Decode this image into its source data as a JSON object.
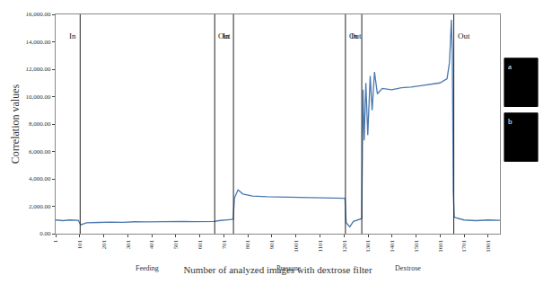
{
  "chart_data": {
    "type": "line",
    "x_label": "Number of analyzed images with dextrose filter",
    "y_label": "Correlation values",
    "x": [
      1,
      30,
      60,
      95,
      105,
      130,
      180,
      230,
      280,
      330,
      380,
      430,
      480,
      530,
      580,
      630,
      660,
      680,
      720,
      740,
      745,
      760,
      780,
      820,
      880,
      940,
      1000,
      1060,
      1120,
      1180,
      1205,
      1210,
      1225,
      1240,
      1260,
      1275,
      1280,
      1285,
      1292,
      1300,
      1310,
      1318,
      1328,
      1340,
      1360,
      1400,
      1440,
      1480,
      1520,
      1560,
      1600,
      1630,
      1640,
      1648,
      1652,
      1656,
      1660,
      1700,
      1750,
      1800,
      1850
    ],
    "series": [
      {
        "name": "Correlation values",
        "color": "#4a78b0",
        "values": [
          1000,
          950,
          1000,
          980,
          650,
          800,
          820,
          850,
          830,
          870,
          860,
          880,
          870,
          890,
          880,
          900,
          890,
          950,
          1000,
          1050,
          2600,
          3200,
          2900,
          2750,
          2700,
          2680,
          2650,
          2640,
          2620,
          2600,
          2580,
          800,
          500,
          900,
          1000,
          1100,
          10500,
          6800,
          11000,
          7200,
          11500,
          9000,
          11800,
          10200,
          10600,
          10500,
          10650,
          10700,
          10800,
          10900,
          11000,
          11300,
          12500,
          15600,
          13000,
          3000,
          1200,
          1000,
          950,
          1000,
          980
        ]
      }
    ],
    "xlim": [
      1,
      1850
    ],
    "xticks": [
      1,
      101,
      201,
      301,
      401,
      501,
      601,
      701,
      801,
      901,
      1001,
      1101,
      1201,
      1301,
      1401,
      1501,
      1601,
      1701,
      1801
    ],
    "ylim": [
      0,
      16000
    ],
    "yticks": [
      {
        "value": 0,
        "label": "0.00"
      },
      {
        "value": 2000,
        "label": "2,000.00"
      },
      {
        "value": 4000,
        "label": "4,000.00"
      },
      {
        "value": 6000,
        "label": "6,000.00"
      },
      {
        "value": 8000,
        "label": "8,000.00"
      },
      {
        "value": 10000,
        "label": "10,000.00"
      },
      {
        "value": 12000,
        "label": "12,000.00"
      },
      {
        "value": 14000,
        "label": "14,000.00"
      },
      {
        "value": 16000,
        "label": "16,000.00"
      }
    ],
    "grid": false,
    "events": [
      {
        "label": "In",
        "x": 103
      },
      {
        "label": "Out",
        "x": 663
      },
      {
        "label": "In",
        "x": 741
      },
      {
        "label": "Out",
        "x": 1207
      },
      {
        "label": "In",
        "x": 1275
      },
      {
        "label": "Out",
        "x": 1658
      }
    ],
    "sections": [
      {
        "text": "Feeding",
        "x": 383
      },
      {
        "text": "Pressure",
        "x": 974
      },
      {
        "text": "Dextrose",
        "x": 1466
      }
    ],
    "annotations": [
      {
        "text": "a"
      },
      {
        "text": "b"
      }
    ]
  }
}
